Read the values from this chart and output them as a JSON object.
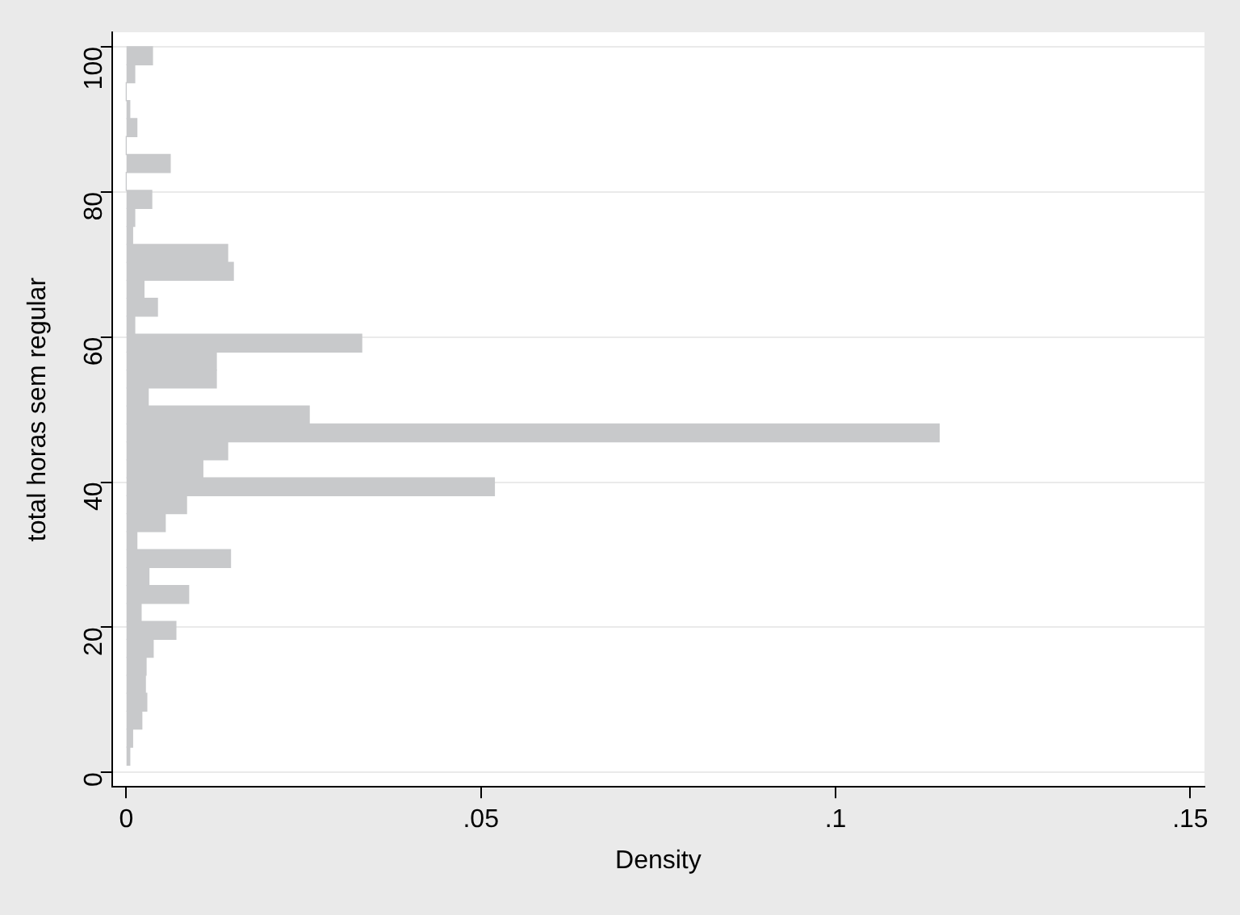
{
  "chart_data": {
    "type": "histogram",
    "orientation": "horizontal",
    "xlabel": "Density",
    "ylabel": "total horas sem regular",
    "color": "#c8c9cb",
    "bins": [
      1,
      3.475,
      5.95,
      8.425,
      10.9,
      13.375,
      15.85,
      18.325,
      20.8,
      23.275,
      25.75,
      28.225,
      30.7,
      33.175,
      35.65,
      38.125,
      40.6,
      43.075,
      45.55,
      48.025,
      50.5,
      52.975,
      55.45,
      57.925,
      60.4,
      62.875,
      65.35,
      67.825,
      70.3,
      72.775,
      75.25,
      77.725,
      80.2,
      82.675,
      85.15,
      87.625,
      90.1,
      92.575,
      95.05,
      97.525,
      100
    ],
    "values": [
      0.0005,
      0.0009,
      0.0022,
      0.0029,
      0.0027,
      0.0028,
      0.0038,
      0.007,
      0.0021,
      0.0088,
      0.0032,
      0.0147,
      0.0015,
      0.0055,
      0.0085,
      0.0519,
      0.0108,
      0.0143,
      0.1146,
      0.0258,
      0.0031,
      0.0127,
      0.0127,
      0.0332,
      0.0012,
      0.0044,
      0.0025,
      0.0151,
      0.0143,
      0.0009,
      0.0012,
      0.0036,
      0,
      0.0062,
      0,
      0.0015,
      0.0005,
      0,
      0.0012,
      0.0037
    ],
    "xlim": [
      -0.002,
      0.152
    ],
    "xticks": [
      0,
      {
        "value": 0.05,
        "label": ".05"
      },
      {
        "value": 0.1,
        "label": ".1"
      },
      {
        "value": 0.15,
        "label": ".15"
      }
    ],
    "ylim": [
      -2,
      102
    ],
    "yticks": [
      0,
      20,
      40,
      60,
      80,
      100
    ],
    "grid": "y",
    "legend": false
  }
}
